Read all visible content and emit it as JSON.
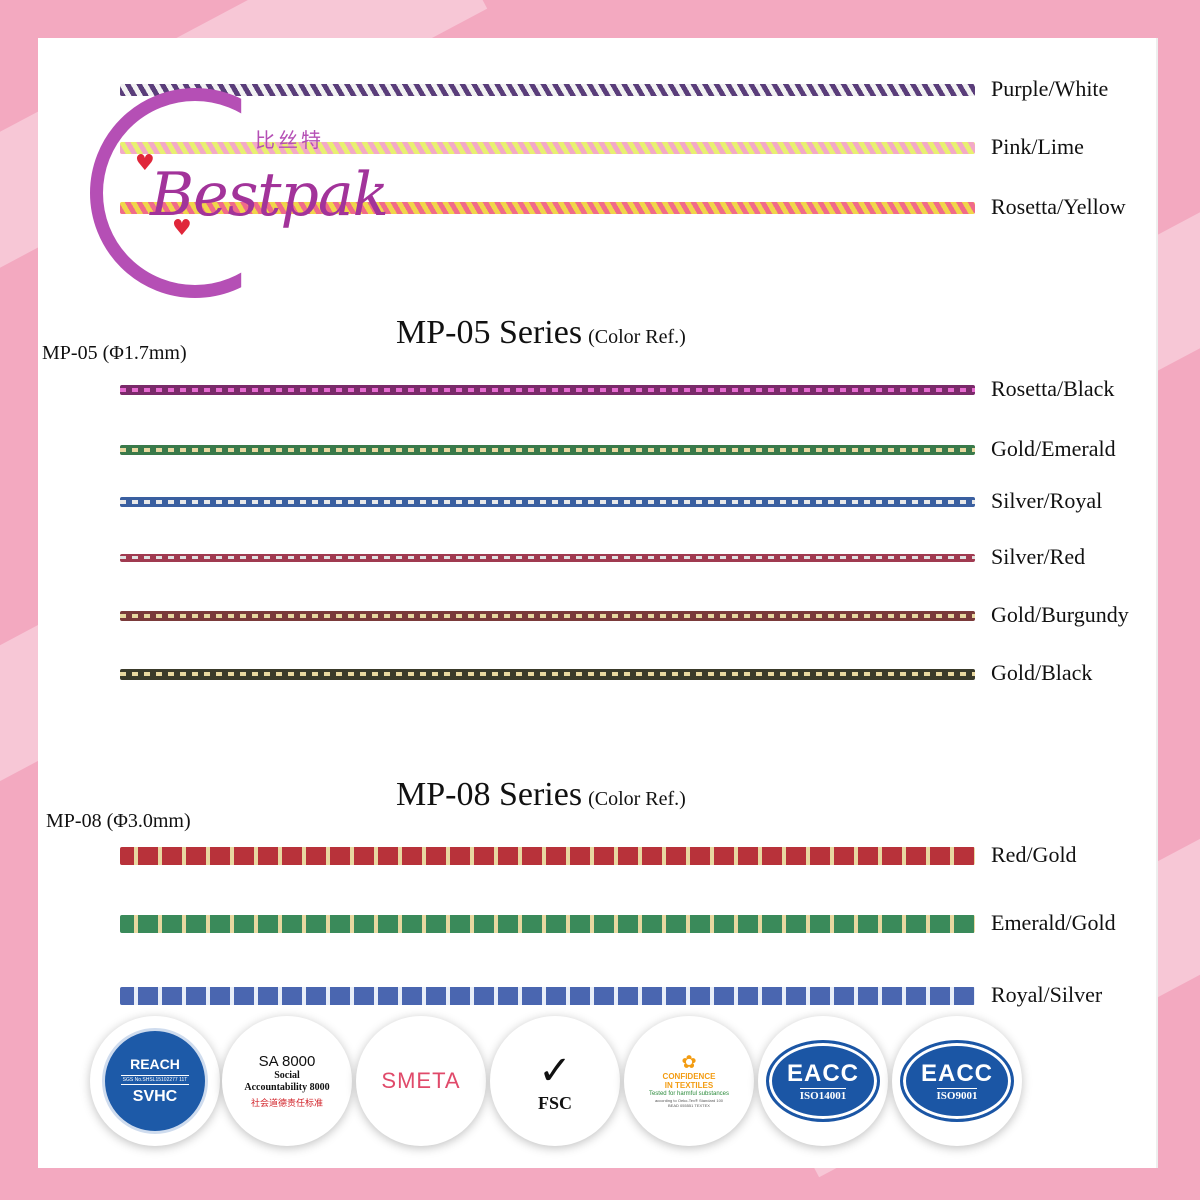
{
  "colors": {
    "background_pink": "#f3a9c0",
    "panel": "#ffffff",
    "logo_purple": "#a2339a",
    "heart_red": "#e0263a",
    "eacc_blue": "#1b56a5",
    "reach_blue": "#1d5aa8"
  },
  "logo": {
    "brand": "Bestpak",
    "chinese": "比丝特",
    "icon": "heart-icon"
  },
  "top_group": {
    "cords": [
      {
        "label": "Purple/White",
        "c1": "#5a3d7a",
        "c2": "#f2f2f2",
        "pattern": "twist",
        "thickness": 12
      },
      {
        "label": "Pink/Lime",
        "c1": "#f3a9c8",
        "c2": "#e8f070",
        "pattern": "twist",
        "thickness": 12
      },
      {
        "label": "Rosetta/Yellow",
        "c1": "#f06a8a",
        "c2": "#f0d64a",
        "pattern": "twist",
        "thickness": 12
      }
    ]
  },
  "mp05": {
    "title": "MP-05 Series",
    "ref": "(Color Ref.)",
    "spec": "MP-05 (Φ1.7mm)",
    "cords": [
      {
        "label": "Rosetta/Black",
        "c1": "#7a2a6a",
        "c2": "#e66ad0",
        "pattern": "dash",
        "thickness": 10
      },
      {
        "label": "Gold/Emerald",
        "c1": "#3a7a4a",
        "c2": "#e8d8a0",
        "pattern": "dash",
        "thickness": 10
      },
      {
        "label": "Silver/Royal",
        "c1": "#3a5fa0",
        "c2": "#e8e8e8",
        "pattern": "dash",
        "thickness": 10
      },
      {
        "label": "Silver/Red",
        "c1": "#a03a50",
        "c2": "#e0e0e0",
        "pattern": "dash",
        "thickness": 8
      },
      {
        "label": "Gold/Burgundy",
        "c1": "#7a3a3a",
        "c2": "#e8d8a0",
        "pattern": "dash",
        "thickness": 10
      },
      {
        "label": "Gold/Black",
        "c1": "#3a3a2a",
        "c2": "#e8d8a0",
        "pattern": "dash",
        "thickness": 11
      }
    ]
  },
  "mp08": {
    "title": "MP-08 Series",
    "ref": "(Color Ref.)",
    "spec": "MP-08 (Φ3.0mm)",
    "cords": [
      {
        "label": "Red/Gold",
        "c1": "#b8323a",
        "c2": "#e8d8a0",
        "pattern": "weave",
        "thickness": 18
      },
      {
        "label": "Emerald/Gold",
        "c1": "#3a8a5a",
        "c2": "#e8d8a0",
        "pattern": "weave",
        "thickness": 18
      },
      {
        "label": "Royal/Silver",
        "c1": "#4a66b0",
        "c2": "#e8eef8",
        "pattern": "weave",
        "thickness": 18
      }
    ]
  },
  "certifications": {
    "reach": {
      "top": "REACH",
      "mid": "SGS No.SHSL15102277 11T",
      "bottom": "SVHC"
    },
    "sa8000": {
      "title": "SA 8000",
      "line1": "Social",
      "line2": "Accountability 8000",
      "cn": "社会道德责任标准"
    },
    "smeta": {
      "text": "SMETA"
    },
    "fsc": {
      "text": "FSC",
      "icon": "tree-check-icon"
    },
    "oeko": {
      "title1": "CONFIDENCE",
      "title2": "IN TEXTILES",
      "sub": "Tested for harmful substances",
      "sub2": "according to Oeko-Tex® Standard 100",
      "tiny": "BEAD 055551   TEXTEX",
      "icon": "flower-icon"
    },
    "eacc1": {
      "top": "EACC",
      "bottom": "ISO14001"
    },
    "eacc2": {
      "top": "EACC",
      "bottom": "ISO9001"
    }
  }
}
